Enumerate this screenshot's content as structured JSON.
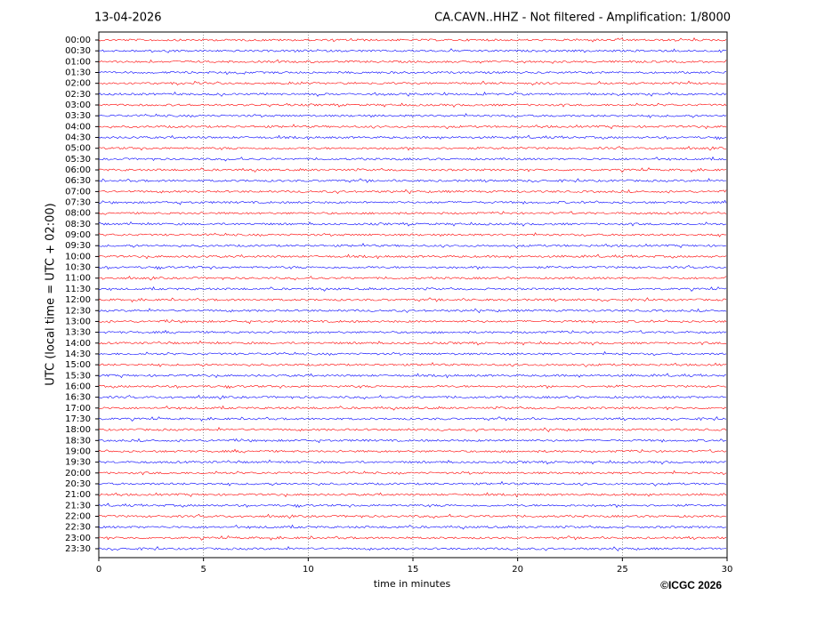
{
  "chart_data": {
    "type": "helicorder",
    "date_label": "13-04-2026",
    "title": "CA.CAVN..HHZ - Not filtered - Amplification: 1/8000",
    "xlabel": "time in minutes",
    "ylabel": "UTC (local time = UTC + 02:00)",
    "credit": "©ICGC 2026",
    "categories": [
      "00:00",
      "00:30",
      "01:00",
      "01:30",
      "02:00",
      "02:30",
      "03:00",
      "03:30",
      "04:00",
      "04:30",
      "05:00",
      "05:30",
      "06:00",
      "06:30",
      "07:00",
      "07:30",
      "08:00",
      "08:30",
      "09:00",
      "09:30",
      "10:00",
      "10:30",
      "11:00",
      "11:30",
      "12:00",
      "12:30",
      "13:00",
      "13:30",
      "14:00",
      "14:30",
      "15:00",
      "15:30",
      "16:00",
      "16:30",
      "17:00",
      "17:30",
      "18:00",
      "18:30",
      "19:00",
      "19:30",
      "20:00",
      "20:30",
      "21:00",
      "21:30",
      "22:00",
      "22:30",
      "23:00",
      "23:30"
    ],
    "xlim": [
      0,
      30
    ],
    "xticks": [
      0,
      5,
      10,
      15,
      20,
      25,
      30
    ],
    "grid": true,
    "colors": [
      "#ff0000",
      "#0000ff"
    ]
  }
}
